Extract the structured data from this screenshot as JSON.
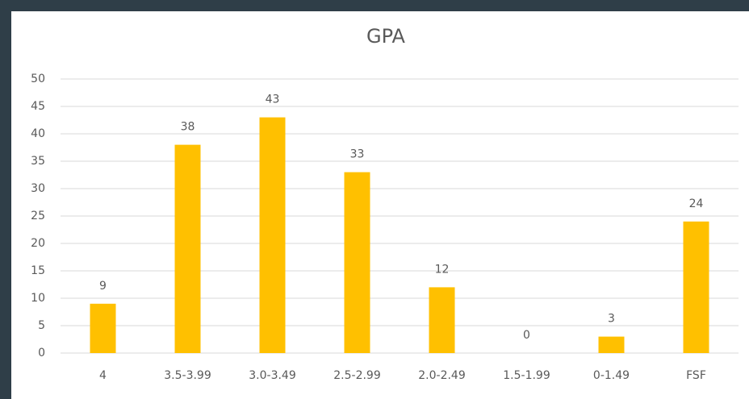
{
  "chart_data": {
    "type": "bar",
    "title": "GPA",
    "categories": [
      "4",
      "3.5-3.99",
      "3.0-3.49",
      "2.5-2.99",
      "2.0-2.49",
      "1.5-1.99",
      "0-1.49",
      "FSF"
    ],
    "values": [
      9,
      38,
      43,
      33,
      12,
      0,
      3,
      24
    ],
    "color": "#ffc000",
    "ylim": [
      0,
      50
    ],
    "yticks": [
      0,
      5,
      10,
      15,
      20,
      25,
      30,
      35,
      40,
      45,
      50
    ],
    "grid": true
  }
}
